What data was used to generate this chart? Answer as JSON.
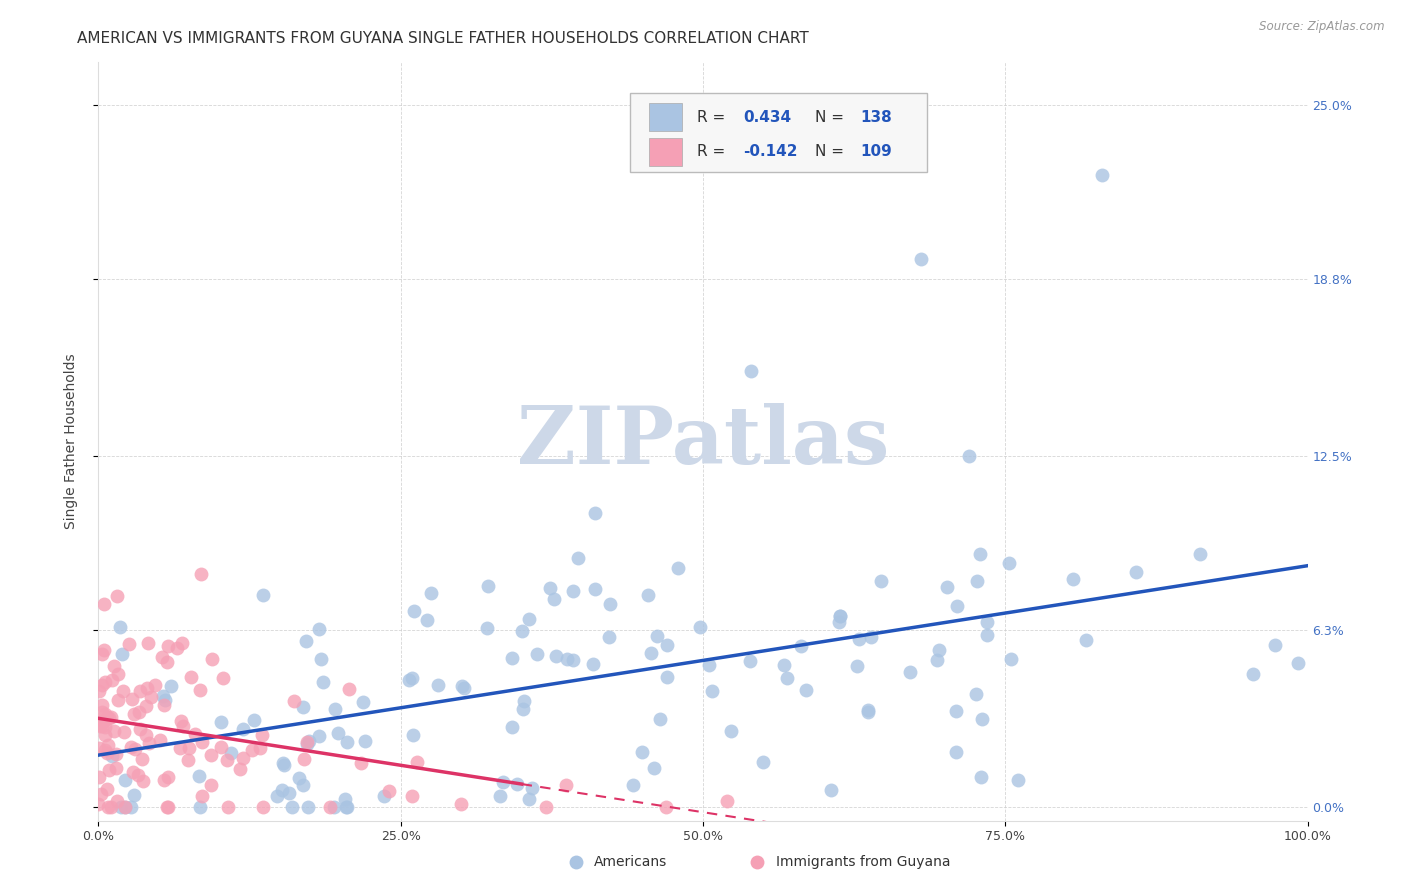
{
  "title": "AMERICAN VS IMMIGRANTS FROM GUYANA SINGLE FATHER HOUSEHOLDS CORRELATION CHART",
  "source": "Source: ZipAtlas.com",
  "ylabel": "Single Father Households",
  "xlim": [
    0.0,
    1.0
  ],
  "ylim": [
    -0.005,
    0.265
  ],
  "ytick_labels": [
    "0.0%",
    "6.3%",
    "12.5%",
    "18.8%",
    "25.0%"
  ],
  "ytick_values": [
    0.0,
    0.063,
    0.125,
    0.188,
    0.25
  ],
  "xtick_labels": [
    "0.0%",
    "25.0%",
    "50.0%",
    "75.0%",
    "100.0%"
  ],
  "xtick_values": [
    0.0,
    0.25,
    0.5,
    0.75,
    1.0
  ],
  "americans_R": 0.434,
  "americans_N": 138,
  "guyana_R": -0.142,
  "guyana_N": 109,
  "americans_color": "#aac4e2",
  "guyana_color": "#f5a0b5",
  "americans_line_color": "#2255bb",
  "guyana_line_color": "#dd3366",
  "background_color": "#ffffff",
  "watermark_text": "ZIPatlas",
  "watermark_color": "#cdd8e8",
  "label_color": "#2255bb",
  "title_fontsize": 11,
  "axis_label_fontsize": 10,
  "tick_fontsize": 9,
  "right_tick_color": "#4472c4"
}
